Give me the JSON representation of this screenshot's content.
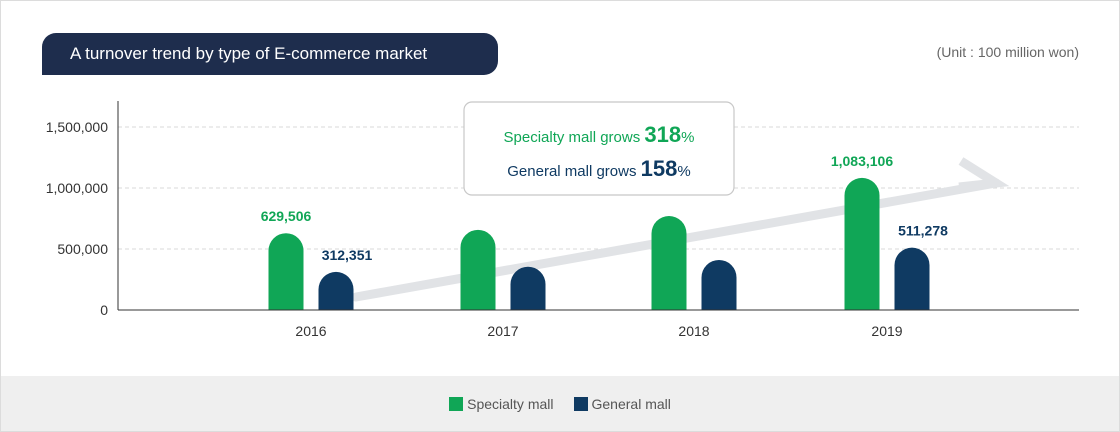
{
  "title": "A turnover trend by type of E-commerce market",
  "unit_label": "(Unit : 100 million won)",
  "callout": {
    "line1_prefix": "Specialty mall grows ",
    "line1_value": "318",
    "line1_suffix": "%",
    "line2_prefix": "General mall grows ",
    "line2_value": "158",
    "line2_suffix": "%"
  },
  "colors": {
    "specialty": "#10a656",
    "general": "#0f3a62",
    "title_bg": "#1e2d4d"
  },
  "chart_data": {
    "type": "bar",
    "categories": [
      "2016",
      "2017",
      "2018",
      "2019"
    ],
    "series": [
      {
        "name": "Specialty mall",
        "values": [
          629506,
          657000,
          770000,
          1083106
        ],
        "labels": [
          "629,506",
          "",
          "",
          "1,083,106"
        ]
      },
      {
        "name": "General mall",
        "values": [
          312351,
          355000,
          410000,
          511278
        ],
        "labels": [
          "312,351",
          "",
          "",
          "511,278"
        ]
      }
    ],
    "yticks": [
      0,
      500000,
      1000000,
      1500000
    ],
    "ytick_labels": [
      "0",
      "500,000",
      "1,000,000",
      "1,500,000"
    ],
    "ylim": [
      0,
      1500000
    ],
    "grid": true,
    "legend": "bottom-center"
  }
}
